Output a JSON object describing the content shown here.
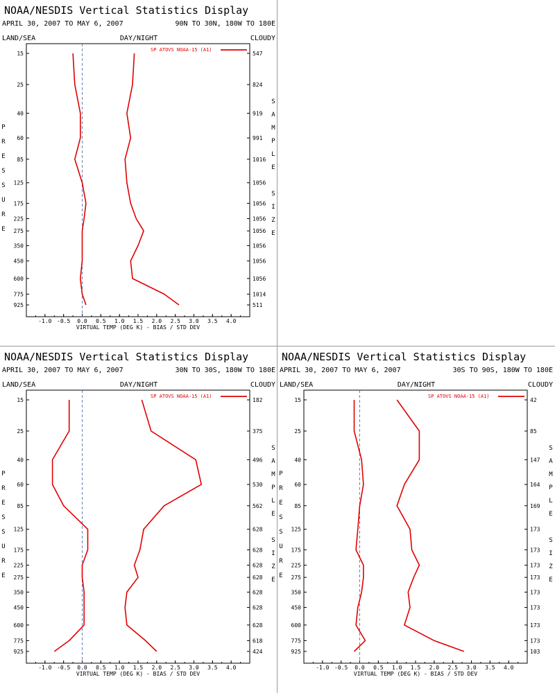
{
  "colors": {
    "series": "#e00000",
    "axis": "#000000",
    "zero_line": "#4060a0"
  },
  "panels": [
    {
      "title": "NOAA/NESDIS Vertical Statistics Display",
      "date_range": "APRIL 30, 2007 TO MAY 6, 2007",
      "region": "90N TO 30N, 180W TO 180E",
      "hdr_left": "LAND/SEA",
      "hdr_mid": "DAY/NIGHT",
      "hdr_right": "CLOUDY",
      "legend": "SP ATOVS NOAA-15 (A1)",
      "left_axis_title": "PRESSURE",
      "right_axis_title": "SAMPLE SIZE",
      "x_axis_title": "VIRTUAL TEMP (DEG K) - BIAS / STD DEV"
    },
    {
      "title": "NOAA/NESDIS Vertical Statistics Display",
      "date_range": "APRIL 30, 2007 TO MAY 6, 2007",
      "region": "30N TO 30S, 180W TO 180E",
      "hdr_left": "LAND/SEA",
      "hdr_mid": "DAY/NIGHT",
      "hdr_right": "CLOUDY",
      "legend": "SP ATOVS NOAA-15 (A1)",
      "left_axis_title": "PRESSURE",
      "right_axis_title": "SAMPLE SIZE",
      "x_axis_title": "VIRTUAL TEMP (DEG K) - BIAS / STD DEV"
    },
    {
      "title": "NOAA/NESDIS Vertical Statistics Display",
      "date_range": "APRIL 30, 2007 TO MAY 6, 2007",
      "region": "30S TO 90S, 180W TO 180E",
      "hdr_left": "LAND/SEA",
      "hdr_mid": "DAY/NIGHT",
      "hdr_right": "CLOUDY",
      "legend": "SP ATOVS NOAA-15 (A1)",
      "left_axis_title": "PRESSURE",
      "right_axis_title": "SAMPLE SIZE",
      "x_axis_title": "VIRTUAL TEMP (DEG K) - BIAS / STD DEV"
    }
  ],
  "chart_data": [
    {
      "type": "line",
      "region": "90N TO 30N, 180W TO 180E",
      "xlim": [
        -1.5,
        4.5
      ],
      "x_ticks": [
        "-1.0",
        "-0.5",
        "0.0",
        "0.5",
        "1.0",
        "1.5",
        "2.0",
        "2.5",
        "3.0",
        "3.5",
        "4.0"
      ],
      "pressure_levels": [
        15,
        25,
        40,
        60,
        85,
        125,
        175,
        225,
        275,
        350,
        450,
        600,
        775,
        925
      ],
      "sample_size": [
        547,
        824,
        919,
        991,
        1016,
        1056,
        1056,
        1056,
        1056,
        1056,
        1056,
        1056,
        1014,
        511
      ],
      "series": [
        {
          "name": "SP ATOVS NOAA-15 (A1)",
          "stat": "bias",
          "values": [
            -0.25,
            -0.2,
            -0.05,
            -0.05,
            -0.2,
            0.0,
            0.1,
            0.05,
            0.0,
            0.0,
            0.0,
            -0.05,
            0.0,
            0.1
          ]
        },
        {
          "name": "SP ATOVS NOAA-15 (A1)",
          "stat": "std_dev",
          "values": [
            1.4,
            1.35,
            1.2,
            1.3,
            1.15,
            1.2,
            1.3,
            1.45,
            1.65,
            1.5,
            1.3,
            1.35,
            2.2,
            2.6
          ]
        }
      ]
    },
    {
      "type": "line",
      "region": "30N TO 30S, 180W TO 180E",
      "xlim": [
        -1.5,
        4.5
      ],
      "x_ticks": [
        "-1.0",
        "-0.5",
        "0.0",
        "0.5",
        "1.0",
        "1.5",
        "2.0",
        "2.5",
        "3.0",
        "3.5",
        "4.0"
      ],
      "pressure_levels": [
        15,
        25,
        40,
        60,
        85,
        125,
        175,
        225,
        275,
        350,
        450,
        600,
        775,
        925
      ],
      "sample_size": [
        182,
        375,
        496,
        530,
        562,
        628,
        628,
        628,
        628,
        628,
        628,
        628,
        618,
        424
      ],
      "series": [
        {
          "name": "SP ATOVS NOAA-15 (A1)",
          "stat": "bias",
          "values": [
            -0.35,
            -0.35,
            -0.8,
            -0.8,
            -0.5,
            0.15,
            0.15,
            0.0,
            0.0,
            0.05,
            0.05,
            0.05,
            -0.35,
            -0.75
          ]
        },
        {
          "name": "SP ATOVS NOAA-15 (A1)",
          "stat": "std_dev",
          "values": [
            1.6,
            1.85,
            3.05,
            3.2,
            2.2,
            1.65,
            1.55,
            1.4,
            1.5,
            1.2,
            1.15,
            1.2,
            1.7,
            2.0
          ]
        }
      ]
    },
    {
      "type": "line",
      "region": "30S TO 90S, 180W TO 180E",
      "xlim": [
        -1.5,
        4.5
      ],
      "x_ticks": [
        "-1.0",
        "-0.5",
        "0.0",
        "0.5",
        "1.0",
        "1.5",
        "2.0",
        "2.5",
        "3.0",
        "3.5",
        "4.0"
      ],
      "pressure_levels": [
        15,
        25,
        40,
        60,
        85,
        125,
        175,
        225,
        275,
        350,
        450,
        600,
        775,
        925
      ],
      "sample_size": [
        42,
        85,
        147,
        164,
        169,
        173,
        173,
        173,
        173,
        173,
        173,
        173,
        173,
        103
      ],
      "series": [
        {
          "name": "SP ATOVS NOAA-15 (A1)",
          "stat": "bias",
          "values": [
            -0.15,
            -0.15,
            0.05,
            0.1,
            0.0,
            -0.05,
            -0.1,
            0.1,
            0.1,
            0.05,
            -0.05,
            -0.1,
            0.15,
            -0.15
          ]
        },
        {
          "name": "SP ATOVS NOAA-15 (A1)",
          "stat": "std_dev",
          "values": [
            1.0,
            1.6,
            1.6,
            1.2,
            1.0,
            1.35,
            1.4,
            1.6,
            1.45,
            1.3,
            1.35,
            1.2,
            2.0,
            2.8
          ]
        }
      ]
    }
  ]
}
